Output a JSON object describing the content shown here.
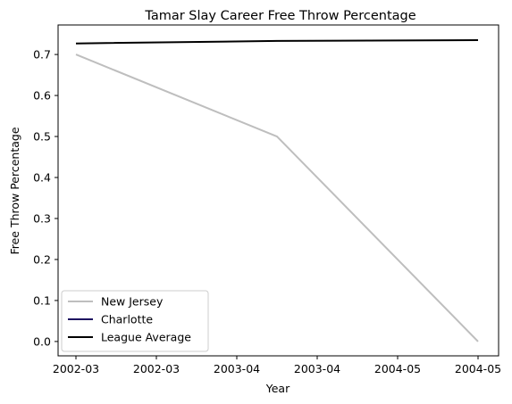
{
  "chart_data": {
    "type": "line",
    "title": "Tamar Slay Career Free Throw Percentage",
    "xlabel": "Year",
    "ylabel": "Free Throw Percentage",
    "x_categories": [
      "2002-03",
      "2003-04",
      "2004-05"
    ],
    "x_tick_labels": [
      "2002-03",
      "2002-03",
      "2003-04",
      "2003-04",
      "2004-05",
      "2004-05"
    ],
    "y_ticks": [
      "0.0",
      "0.1",
      "0.2",
      "0.3",
      "0.4",
      "0.5",
      "0.6",
      "0.7"
    ],
    "ylim": [
      -0.035,
      0.772
    ],
    "grid": false,
    "legend_position": "lower-left",
    "series": [
      {
        "name": "New Jersey",
        "color": "#bebebe",
        "points": [
          {
            "x": "2002-03",
            "y": 0.7
          },
          {
            "x": "2003-04",
            "y": 0.5
          },
          {
            "x": "2004-05",
            "y": 0.0
          }
        ]
      },
      {
        "name": "Charlotte",
        "color": "#1d1160",
        "points": []
      },
      {
        "name": "League Average",
        "color": "#000000",
        "points": [
          {
            "x": "2002-03",
            "y": 0.727
          },
          {
            "x": "2003-04",
            "y": 0.733
          },
          {
            "x": "2004-05",
            "y": 0.735
          }
        ]
      }
    ]
  }
}
